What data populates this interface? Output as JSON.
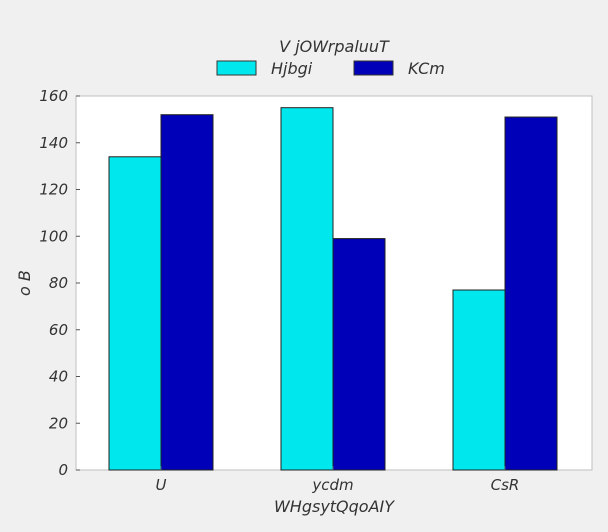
{
  "chart_data": {
    "type": "bar",
    "title": "",
    "xlabel": "WHgsytQqoAIY",
    "ylabel": "o  B",
    "categories": [
      "U",
      "ycdm",
      "CsR"
    ],
    "series": [
      {
        "name": "Hjbgi",
        "color": "#00e8ee",
        "values": [
          134,
          155,
          77
        ]
      },
      {
        "name": "KCm",
        "color": "#0000b8",
        "values": [
          152,
          99,
          151
        ]
      }
    ],
    "ylim": [
      0,
      160
    ],
    "yticks": [
      0,
      20,
      40,
      60,
      80,
      100,
      120,
      140,
      160
    ],
    "grid": false,
    "legend": {
      "title": "V jOWrpaluuT",
      "placement": "top-center"
    },
    "background_color": "#f0f0f0",
    "plot_background_color": "#ffffff"
  }
}
